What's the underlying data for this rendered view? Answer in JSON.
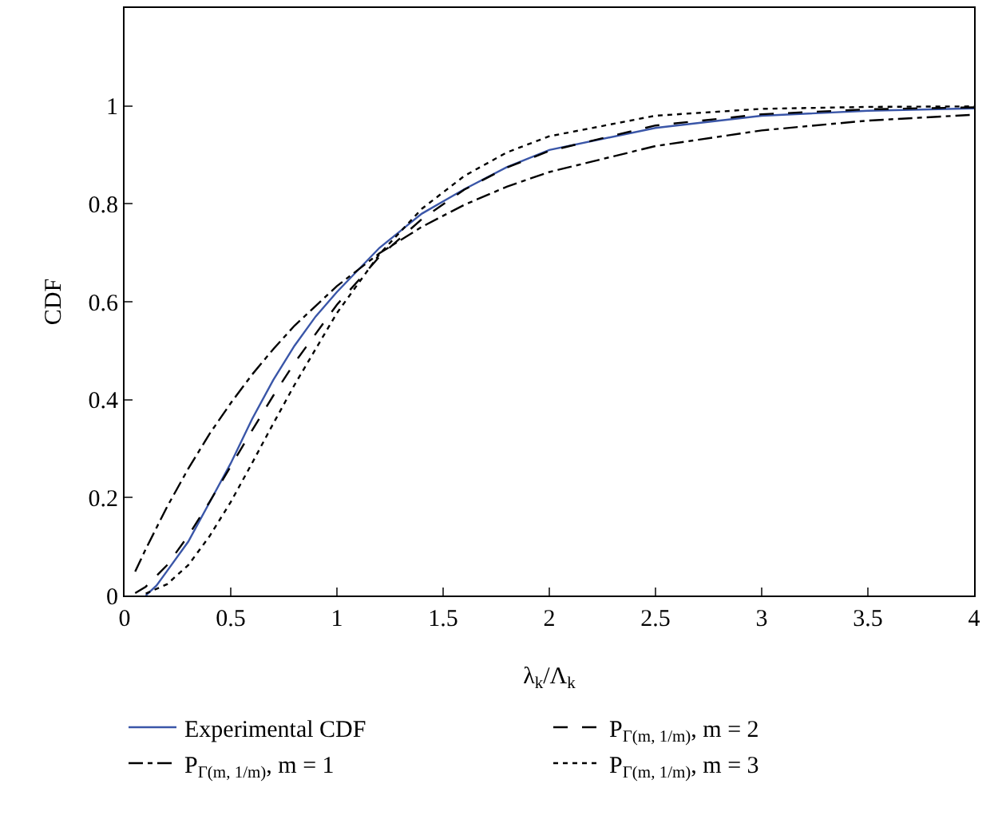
{
  "chart_data": {
    "type": "line",
    "xlabel": "λ$_{k}$/Λ$_{k}$",
    "ylabel": "CDF",
    "xlim": [
      0,
      4
    ],
    "xticks": [
      0,
      0.5,
      1,
      1.5,
      2,
      2.5,
      3,
      3.5,
      4
    ],
    "ylim": [
      0,
      1.2
    ],
    "yticks": [
      0,
      0.2,
      0.4,
      0.6,
      0.8,
      1
    ],
    "grid": false,
    "legend": "bottom",
    "marker": "none",
    "series": [
      {
        "name": "Experimental CDF",
        "color": "#3a56a8",
        "line_style": "solid",
        "x": [
          0.1,
          0.15,
          0.2,
          0.3,
          0.4,
          0.5,
          0.6,
          0.7,
          0.8,
          0.9,
          1.0,
          1.2,
          1.4,
          1.6,
          1.8,
          2.0,
          2.5,
          3.0,
          3.5,
          4.0
        ],
        "values": [
          0,
          0.02,
          0.05,
          0.11,
          0.19,
          0.27,
          0.36,
          0.44,
          0.51,
          0.57,
          0.62,
          0.71,
          0.78,
          0.83,
          0.875,
          0.91,
          0.955,
          0.98,
          0.99,
          0.995
        ]
      },
      {
        "name": "P$_{Γ(m, 1/m)}$, m = 2",
        "color": "#000000",
        "line_style": "dashed",
        "x": [
          0.05,
          0.1,
          0.2,
          0.3,
          0.4,
          0.5,
          0.6,
          0.7,
          0.8,
          1.0,
          1.2,
          1.4,
          1.6,
          1.8,
          2.0,
          2.5,
          3.0,
          3.5,
          4.0
        ],
        "values": [
          0.005,
          0.018,
          0.062,
          0.122,
          0.191,
          0.264,
          0.337,
          0.408,
          0.475,
          0.594,
          0.692,
          0.769,
          0.829,
          0.874,
          0.908,
          0.96,
          0.983,
          0.993,
          0.997
        ]
      },
      {
        "name": "P$_{Γ(m, 1/m)}$, m = 1",
        "color": "#000000",
        "line_style": "dashdot",
        "x": [
          0.05,
          0.1,
          0.2,
          0.3,
          0.4,
          0.5,
          0.6,
          0.7,
          0.8,
          1.0,
          1.2,
          1.4,
          1.6,
          1.8,
          2.0,
          2.5,
          3.0,
          3.5,
          4.0
        ],
        "values": [
          0.049,
          0.095,
          0.181,
          0.259,
          0.33,
          0.393,
          0.451,
          0.503,
          0.551,
          0.632,
          0.699,
          0.753,
          0.798,
          0.835,
          0.865,
          0.918,
          0.95,
          0.97,
          0.982
        ]
      },
      {
        "name": "P$_{Γ(m, 1/m)}$, m = 3",
        "color": "#000000",
        "line_style": "dotted",
        "x": [
          0.1,
          0.2,
          0.3,
          0.4,
          0.5,
          0.6,
          0.7,
          0.8,
          1.0,
          1.2,
          1.4,
          1.6,
          1.8,
          2.0,
          2.5,
          3.0,
          3.5,
          4.0
        ],
        "values": [
          0.004,
          0.023,
          0.062,
          0.121,
          0.191,
          0.27,
          0.351,
          0.43,
          0.577,
          0.697,
          0.79,
          0.857,
          0.905,
          0.938,
          0.98,
          0.994,
          0.998,
          0.999
        ]
      }
    ]
  }
}
